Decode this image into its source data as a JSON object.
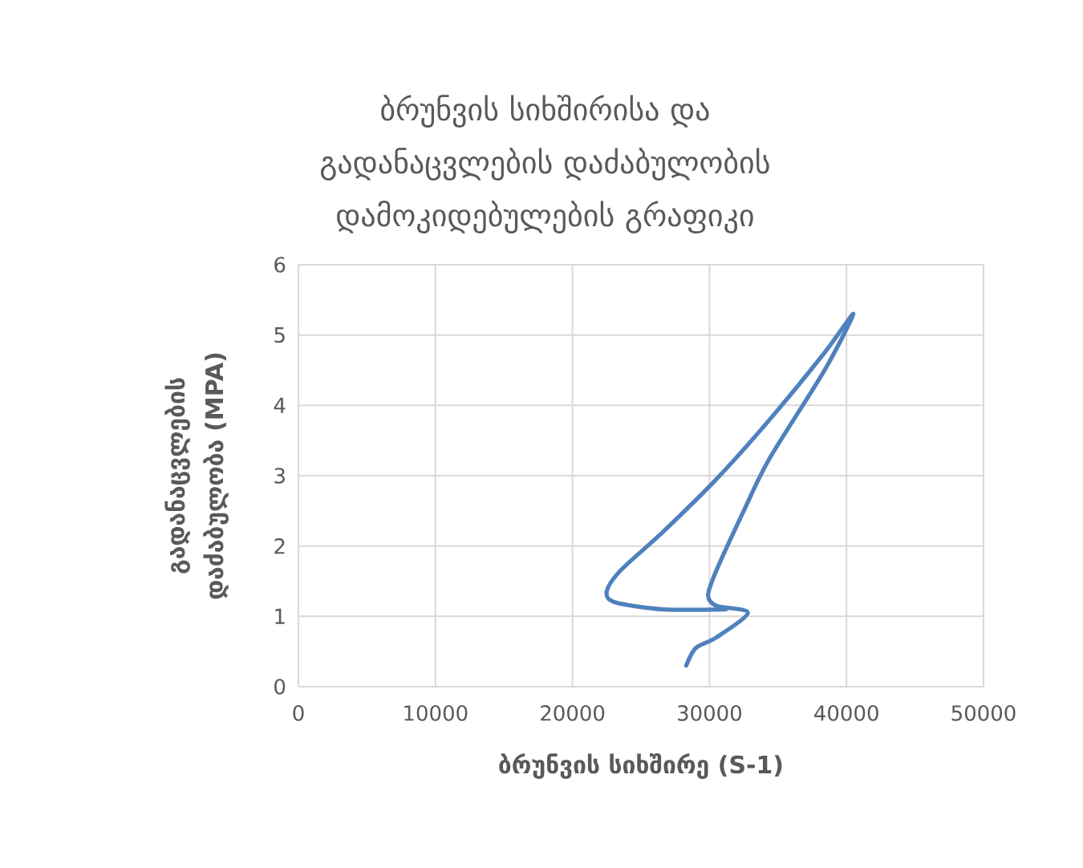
{
  "chart_data": {
    "type": "line",
    "title": "ბრუნვის სიხშირისა და გადანაცვლების დაძაბულობის დამოკიდებულების გრაფიკი",
    "xlabel": "ბრუნვის სიხშირე (S-1)",
    "ylabel": "გადანაცვლების დაძაბულობა (MPA)",
    "series": [
      {
        "color": "#4f81bd",
        "x": [
          28300,
          29000,
          30500,
          32800,
          30500,
          29900,
          30500,
          32500,
          34400,
          38400,
          40500,
          38400,
          34400,
          30500,
          26600,
          23500,
          22500,
          23100,
          26600,
          31200
        ],
        "values": [
          0.3,
          0.55,
          0.7,
          1.05,
          1.15,
          1.3,
          1.65,
          2.5,
          3.25,
          4.5,
          5.3,
          4.75,
          3.8,
          2.95,
          2.2,
          1.65,
          1.35,
          1.2,
          1.1,
          1.1
        ]
      }
    ],
    "xlim": [
      0,
      50000
    ],
    "xticks": [
      0,
      10000,
      20000,
      30000,
      40000,
      50000
    ],
    "ylim": [
      0,
      6
    ],
    "yticks": [
      0,
      1,
      2,
      3,
      4,
      5,
      6
    ],
    "grid": true,
    "marker": "none",
    "line_style": "solid"
  }
}
